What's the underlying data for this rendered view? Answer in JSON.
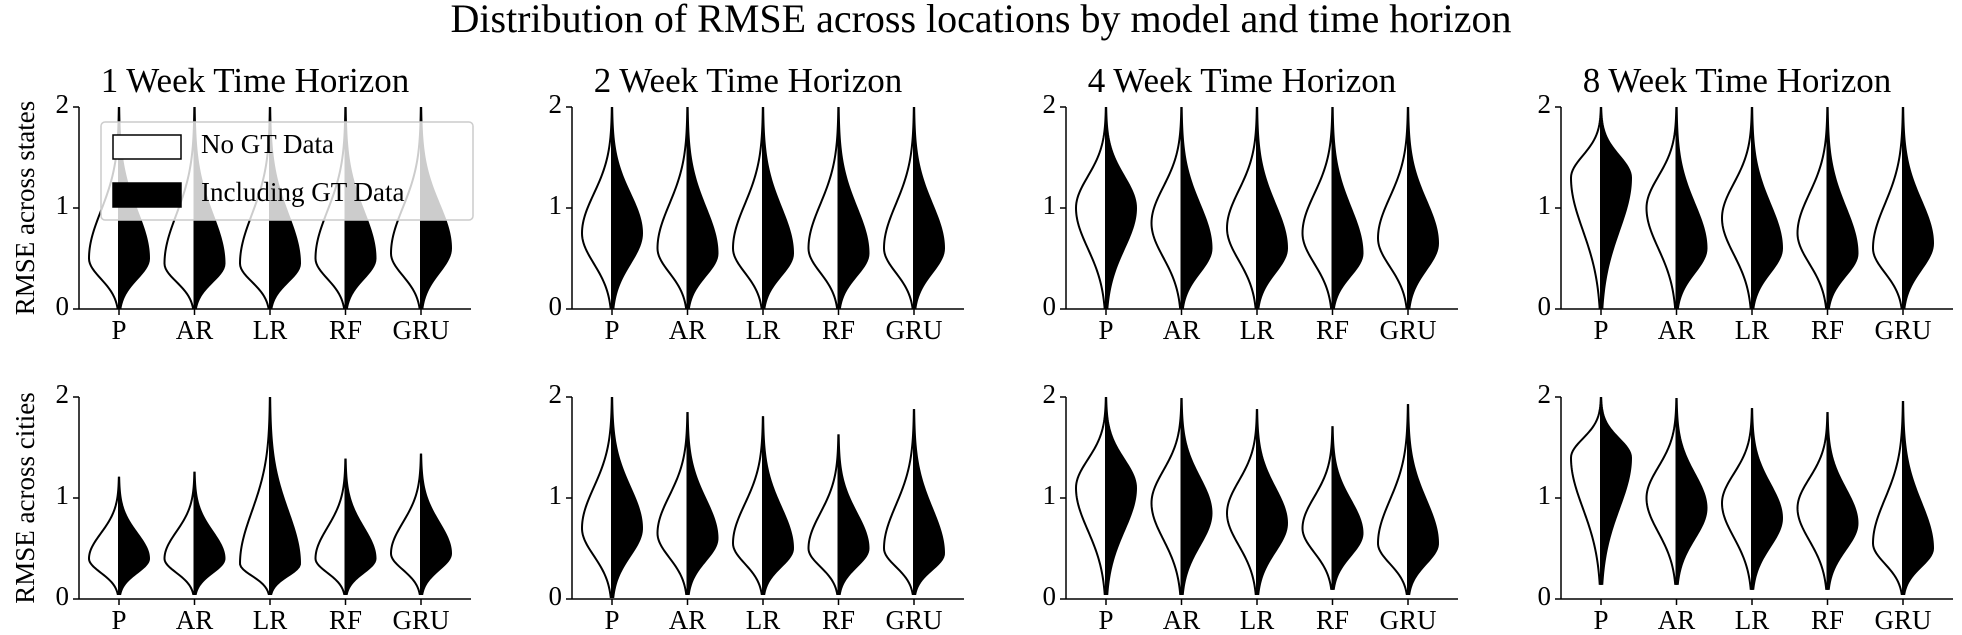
{
  "title": "Distribution of RMSE across locations by model and time horizon",
  "chart_data": [
    {
      "type": "violin",
      "title": "1 Week Time Horizon",
      "ylabel": "RMSE across states",
      "legend": "upper left",
      "categories": [
        "P",
        "AR",
        "LR",
        "RF",
        "GRU"
      ],
      "ylim": [
        0,
        2
      ],
      "yticks": [
        0,
        1,
        2
      ],
      "series": [
        {
          "name": "No GT Data",
          "color": "#ffffff",
          "values": [
            [
              0,
              0.5,
              2
            ],
            [
              0,
              0.45,
              2
            ],
            [
              0,
              0.45,
              2
            ],
            [
              0,
              0.5,
              2
            ],
            [
              0,
              0.55,
              2
            ]
          ]
        },
        {
          "name": "Including GT Data",
          "color": "#000000",
          "values": [
            [
              0,
              0.5,
              2
            ],
            [
              0,
              0.45,
              2
            ],
            [
              0,
              0.45,
              2
            ],
            [
              0,
              0.5,
              2
            ],
            [
              0,
              0.6,
              2
            ]
          ]
        }
      ]
    },
    {
      "type": "violin",
      "title": "2 Week Time Horizon",
      "categories": [
        "P",
        "AR",
        "LR",
        "RF",
        "GRU"
      ],
      "ylim": [
        0,
        2
      ],
      "yticks": [
        0,
        1,
        2
      ],
      "series": [
        {
          "name": "No GT Data",
          "color": "#ffffff",
          "values": [
            [
              0,
              0.75,
              2
            ],
            [
              0,
              0.6,
              2
            ],
            [
              0,
              0.6,
              2
            ],
            [
              0,
              0.6,
              2
            ],
            [
              0,
              0.6,
              2
            ]
          ]
        },
        {
          "name": "Including GT Data",
          "color": "#000000",
          "values": [
            [
              0,
              0.75,
              2
            ],
            [
              0,
              0.55,
              2
            ],
            [
              0,
              0.55,
              2
            ],
            [
              0,
              0.55,
              2
            ],
            [
              0,
              0.6,
              2
            ]
          ]
        }
      ]
    },
    {
      "type": "violin",
      "title": "4 Week Time Horizon",
      "categories": [
        "P",
        "AR",
        "LR",
        "RF",
        "GRU"
      ],
      "ylim": [
        0,
        2
      ],
      "yticks": [
        0,
        1,
        2
      ],
      "series": [
        {
          "name": "No GT Data",
          "color": "#ffffff",
          "values": [
            [
              0,
              1.0,
              2
            ],
            [
              0,
              0.85,
              2
            ],
            [
              0,
              0.8,
              2
            ],
            [
              0,
              0.75,
              2
            ],
            [
              0,
              0.7,
              2
            ]
          ]
        },
        {
          "name": "Including GT Data",
          "color": "#000000",
          "values": [
            [
              0,
              1.0,
              2
            ],
            [
              0,
              0.6,
              2
            ],
            [
              0,
              0.6,
              2
            ],
            [
              0,
              0.55,
              2
            ],
            [
              0,
              0.65,
              2
            ]
          ]
        }
      ]
    },
    {
      "type": "violin",
      "title": "8 Week Time Horizon",
      "categories": [
        "P",
        "AR",
        "LR",
        "RF",
        "GRU"
      ],
      "ylim": [
        0,
        2
      ],
      "yticks": [
        0,
        1,
        2
      ],
      "series": [
        {
          "name": "No GT Data",
          "color": "#ffffff",
          "values": [
            [
              0,
              1.3,
              2
            ],
            [
              0,
              1.0,
              2
            ],
            [
              0,
              0.9,
              2
            ],
            [
              0,
              0.75,
              2
            ],
            [
              0,
              0.6,
              2
            ]
          ]
        },
        {
          "name": "Including GT Data",
          "color": "#000000",
          "values": [
            [
              0,
              1.3,
              2
            ],
            [
              0,
              0.6,
              2
            ],
            [
              0,
              0.6,
              2
            ],
            [
              0,
              0.55,
              2
            ],
            [
              0,
              0.65,
              2
            ]
          ]
        }
      ]
    },
    {
      "type": "violin",
      "ylabel": "RMSE across cities",
      "categories": [
        "P",
        "AR",
        "LR",
        "RF",
        "GRU"
      ],
      "ylim": [
        0,
        2
      ],
      "yticks": [
        0,
        1,
        2
      ],
      "series": [
        {
          "name": "No GT Data",
          "color": "#ffffff",
          "values": [
            [
              0.05,
              0.4,
              1.2
            ],
            [
              0.05,
              0.4,
              1.25
            ],
            [
              0.05,
              0.35,
              2
            ],
            [
              0.05,
              0.4,
              1.38
            ],
            [
              0.05,
              0.45,
              1.43
            ]
          ]
        },
        {
          "name": "Including GT Data",
          "color": "#000000",
          "values": [
            [
              0.05,
              0.4,
              1.2
            ],
            [
              0.05,
              0.4,
              1.25
            ],
            [
              0.05,
              0.35,
              2
            ],
            [
              0.05,
              0.4,
              1.38
            ],
            [
              0.05,
              0.45,
              1.43
            ]
          ]
        }
      ]
    },
    {
      "type": "violin",
      "categories": [
        "P",
        "AR",
        "LR",
        "RF",
        "GRU"
      ],
      "ylim": [
        0,
        2
      ],
      "yticks": [
        0,
        1,
        2
      ],
      "series": [
        {
          "name": "No GT Data",
          "color": "#ffffff",
          "values": [
            [
              0.02,
              0.7,
              2
            ],
            [
              0.05,
              0.65,
              1.84
            ],
            [
              0.05,
              0.55,
              1.8
            ],
            [
              0.05,
              0.5,
              1.62
            ],
            [
              0.05,
              0.5,
              1.87
            ]
          ]
        },
        {
          "name": "Including GT Data",
          "color": "#000000",
          "values": [
            [
              0.02,
              0.7,
              2
            ],
            [
              0.05,
              0.6,
              1.84
            ],
            [
              0.05,
              0.5,
              1.8
            ],
            [
              0.05,
              0.5,
              1.62
            ],
            [
              0.05,
              0.45,
              1.87
            ]
          ]
        }
      ]
    },
    {
      "type": "violin",
      "categories": [
        "P",
        "AR",
        "LR",
        "RF",
        "GRU"
      ],
      "ylim": [
        0,
        2
      ],
      "yticks": [
        0,
        1,
        2
      ],
      "series": [
        {
          "name": "No GT Data",
          "color": "#ffffff",
          "values": [
            [
              0.05,
              1.1,
              2
            ],
            [
              0.05,
              0.95,
              1.98
            ],
            [
              0.05,
              0.85,
              1.87
            ],
            [
              0.1,
              0.7,
              1.7
            ],
            [
              0.05,
              0.55,
              1.92
            ]
          ]
        },
        {
          "name": "Including GT Data",
          "color": "#000000",
          "values": [
            [
              0.05,
              1.1,
              2
            ],
            [
              0.05,
              0.85,
              1.98
            ],
            [
              0.05,
              0.75,
              1.87
            ],
            [
              0.1,
              0.65,
              1.7
            ],
            [
              0.05,
              0.55,
              1.92
            ]
          ]
        }
      ]
    },
    {
      "type": "violin",
      "categories": [
        "P",
        "AR",
        "LR",
        "RF",
        "GRU"
      ],
      "ylim": [
        0,
        2
      ],
      "yticks": [
        0,
        1,
        2
      ],
      "series": [
        {
          "name": "No GT Data",
          "color": "#ffffff",
          "values": [
            [
              0.15,
              1.4,
              2
            ],
            [
              0.15,
              1.0,
              1.98
            ],
            [
              0.1,
              0.95,
              1.88
            ],
            [
              0.1,
              0.9,
              1.84
            ],
            [
              0.05,
              0.55,
              1.95
            ]
          ]
        },
        {
          "name": "Including GT Data",
          "color": "#000000",
          "values": [
            [
              0.15,
              1.4,
              2
            ],
            [
              0.15,
              0.9,
              1.98
            ],
            [
              0.1,
              0.8,
              1.88
            ],
            [
              0.1,
              0.75,
              1.84
            ],
            [
              0.05,
              0.5,
              1.95
            ]
          ]
        }
      ]
    }
  ]
}
